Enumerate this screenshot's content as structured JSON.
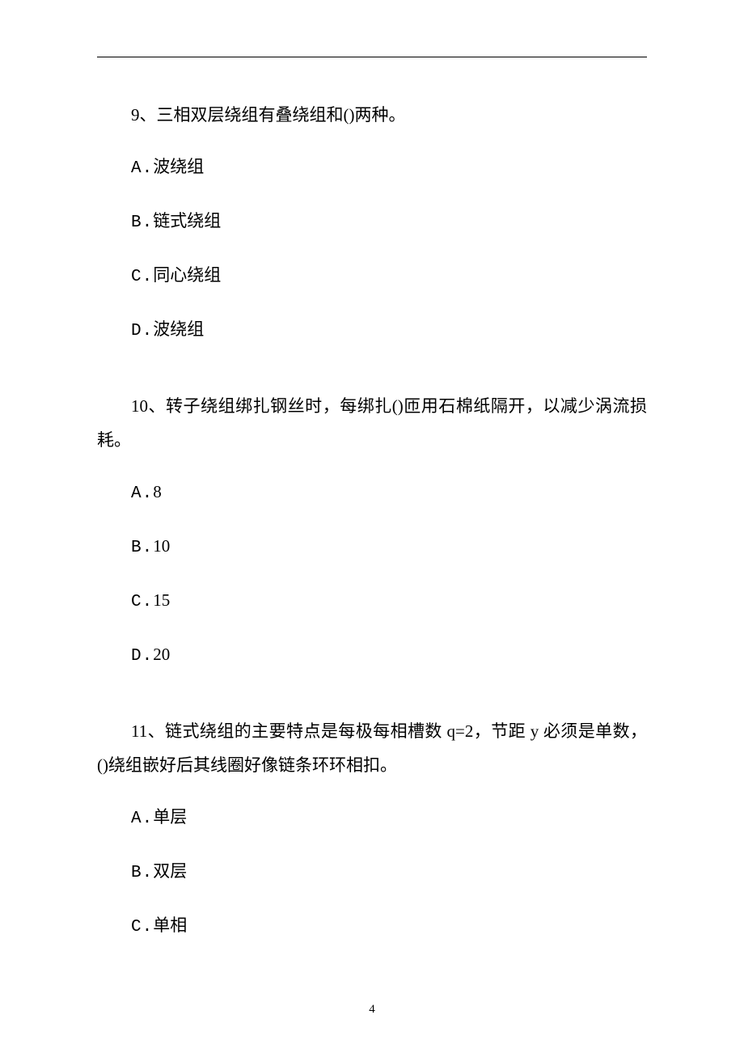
{
  "page": {
    "number": "4",
    "background_color": "#ffffff",
    "text_color": "#000000",
    "font_size_body": 21,
    "font_size_page_number": 15,
    "line_height": 2.0,
    "font_family": "SimSun"
  },
  "questions": [
    {
      "id": "q9",
      "text": "9、三相双层绕组有叠绕组和()两种。",
      "options": [
        {
          "letter": "A.",
          "text": "波绕组"
        },
        {
          "letter": "B.",
          "text": "链式绕组"
        },
        {
          "letter": "C.",
          "text": "同心绕组"
        },
        {
          "letter": "D.",
          "text": "波绕组"
        }
      ]
    },
    {
      "id": "q10",
      "text": "10、转子绕组绑扎钢丝时，每绑扎()匝用石棉纸隔开，以减少涡流损耗。",
      "options": [
        {
          "letter": "A.",
          "text": "8"
        },
        {
          "letter": "B.",
          "text": "10"
        },
        {
          "letter": "C.",
          "text": "15"
        },
        {
          "letter": "D.",
          "text": "20"
        }
      ]
    },
    {
      "id": "q11",
      "text": "11、链式绕组的主要特点是每极每相槽数 q=2，节距 y 必须是单数，()绕组嵌好后其线圈好像链条环环相扣。",
      "options": [
        {
          "letter": "A.",
          "text": "单层"
        },
        {
          "letter": "B.",
          "text": "双层"
        },
        {
          "letter": "C.",
          "text": "单相"
        }
      ]
    }
  ]
}
